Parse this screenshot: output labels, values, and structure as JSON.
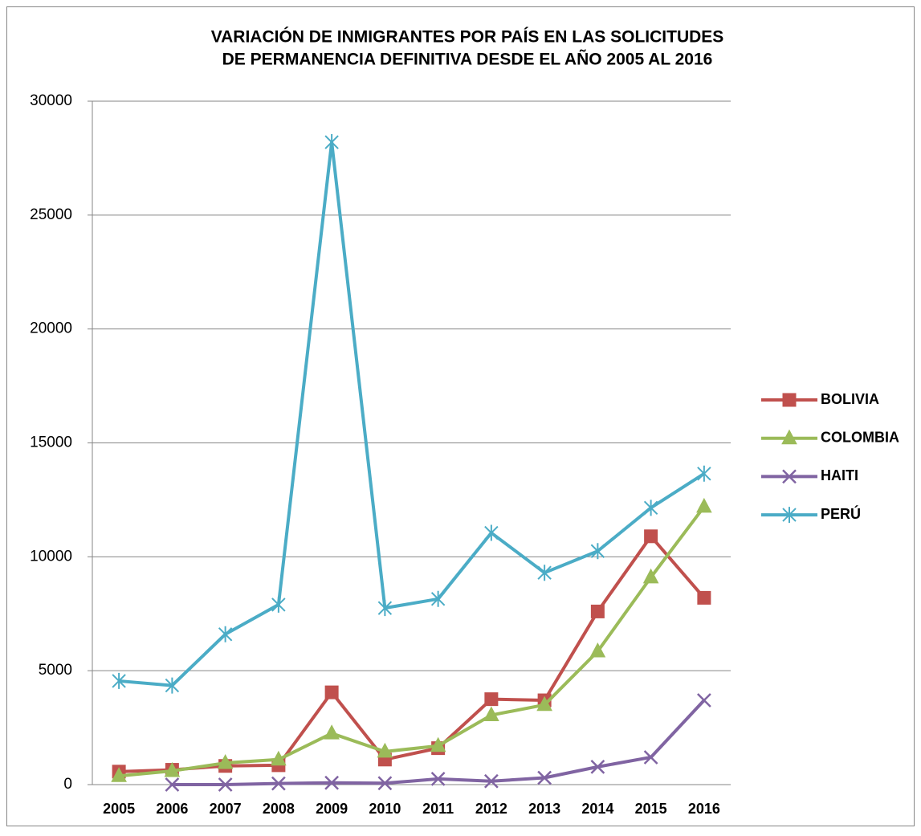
{
  "chart_data": {
    "type": "line",
    "title": [
      "VARIACIÓN DE INMIGRANTES POR PAÍS EN LAS SOLICITUDES",
      "DE PERMANENCIA DEFINITIVA DESDE EL AÑO 2005 AL 2016"
    ],
    "categories": [
      "2005",
      "2006",
      "2007",
      "2008",
      "2009",
      "2010",
      "2011",
      "2012",
      "2013",
      "2014",
      "2015",
      "2016"
    ],
    "series": [
      {
        "name": "BOLIVIA",
        "color": "#c0504d",
        "marker": "square",
        "values": [
          570,
          650,
          820,
          850,
          4050,
          1100,
          1600,
          3750,
          3700,
          7600,
          10900,
          8200
        ]
      },
      {
        "name": "COLOMBIA",
        "color": "#9bbb59",
        "marker": "triangle",
        "values": [
          380,
          600,
          950,
          1100,
          2250,
          1450,
          1700,
          3050,
          3500,
          5850,
          9100,
          12200
        ]
      },
      {
        "name": "HAITI",
        "color": "#8064a2",
        "marker": "x",
        "values": [
          null,
          0,
          0,
          50,
          80,
          60,
          250,
          150,
          300,
          780,
          1200,
          3700
        ]
      },
      {
        "name": "PERÚ",
        "color": "#4bacc6",
        "marker": "star",
        "values": [
          4550,
          4350,
          6600,
          7900,
          28200,
          7750,
          8150,
          11050,
          9300,
          10250,
          12150,
          13650
        ]
      }
    ],
    "ylim": [
      0,
      30000
    ],
    "yticks": [
      0,
      5000,
      10000,
      15000,
      20000,
      25000,
      30000
    ],
    "grid": true,
    "legend": "right"
  }
}
